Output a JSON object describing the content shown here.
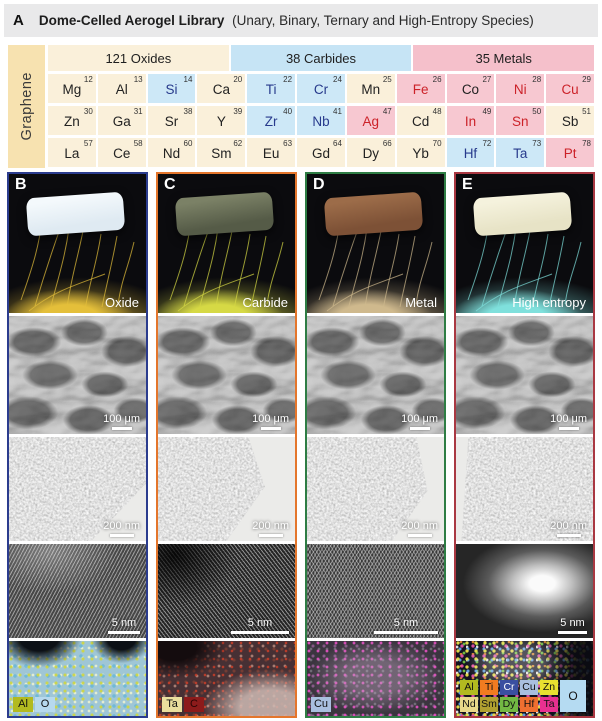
{
  "figure": {
    "panel_label": "A",
    "title": "Dome-Celled Aerogel Library",
    "subtitle": "(Unary, Binary, Ternary and High-Entropy Species)"
  },
  "periodic_table": {
    "side_label": "Graphene",
    "group_headers": [
      "121 Oxides",
      "38 Carbides",
      "35 Metals"
    ],
    "colors": {
      "oxide_bg": "#faf0da",
      "carbide_bg": "#cde8f7",
      "metal_bg": "#f7c8d1",
      "oxide_header_bg": "#faf0da",
      "carbide_header_bg": "#c6e4f5",
      "metal_header_bg": "#f5c0cb",
      "carbide_text": "#273a8c",
      "metal_text": "#cc2229",
      "default_text": "#222222",
      "graphene_bg": "#f7e2b0"
    },
    "rows": [
      [
        {
          "symbol": "Mg",
          "number": "12",
          "type": "oxide"
        },
        {
          "symbol": "Al",
          "number": "13",
          "type": "oxide"
        },
        {
          "symbol": "Si",
          "number": "14",
          "type": "carbide"
        },
        {
          "symbol": "Ca",
          "number": "20",
          "type": "oxide"
        },
        {
          "symbol": "Ti",
          "number": "22",
          "type": "carbide"
        },
        {
          "symbol": "Cr",
          "number": "24",
          "type": "carbide"
        },
        {
          "symbol": "Mn",
          "number": "25",
          "type": "oxide"
        },
        {
          "symbol": "Fe",
          "number": "26",
          "type": "metal"
        },
        {
          "symbol": "Co",
          "number": "27",
          "type": "metal",
          "text": "default"
        },
        {
          "symbol": "Ni",
          "number": "28",
          "type": "metal"
        },
        {
          "symbol": "Cu",
          "number": "29",
          "type": "metal"
        }
      ],
      [
        {
          "symbol": "Zn",
          "number": "30",
          "type": "oxide"
        },
        {
          "symbol": "Ga",
          "number": "31",
          "type": "oxide"
        },
        {
          "symbol": "Sr",
          "number": "38",
          "type": "oxide"
        },
        {
          "symbol": "Y",
          "number": "39",
          "type": "oxide"
        },
        {
          "symbol": "Zr",
          "number": "40",
          "type": "carbide"
        },
        {
          "symbol": "Nb",
          "number": "41",
          "type": "carbide"
        },
        {
          "symbol": "Ag",
          "number": "47",
          "type": "metal"
        },
        {
          "symbol": "Cd",
          "number": "48",
          "type": "oxide"
        },
        {
          "symbol": "In",
          "number": "49",
          "type": "metal"
        },
        {
          "symbol": "Sn",
          "number": "50",
          "type": "metal"
        },
        {
          "symbol": "Sb",
          "number": "51",
          "type": "oxide"
        }
      ],
      [
        {
          "symbol": "La",
          "number": "57",
          "type": "oxide"
        },
        {
          "symbol": "Ce",
          "number": "58",
          "type": "oxide"
        },
        {
          "symbol": "Nd",
          "number": "60",
          "type": "oxide"
        },
        {
          "symbol": "Sm",
          "number": "62",
          "type": "oxide"
        },
        {
          "symbol": "Eu",
          "number": "63",
          "type": "oxide"
        },
        {
          "symbol": "Gd",
          "number": "64",
          "type": "oxide"
        },
        {
          "symbol": "Dy",
          "number": "66",
          "type": "oxide"
        },
        {
          "symbol": "Yb",
          "number": "70",
          "type": "oxide"
        },
        {
          "symbol": "Hf",
          "number": "72",
          "type": "carbide"
        },
        {
          "symbol": "Ta",
          "number": "73",
          "type": "carbide"
        },
        {
          "symbol": "Pt",
          "number": "78",
          "type": "metal"
        }
      ]
    ]
  },
  "panels": [
    {
      "letter": "B",
      "label": "Oxide",
      "accent": "#2b3c8e",
      "photo": {
        "slab_color": "#dfeaf2",
        "slab_highlight": "#f4f9fc",
        "fiber_color": "#e4bf3a"
      },
      "scale_bars": {
        "sem": "100 μm",
        "tem": "200 nm",
        "hrtem": "5 nm"
      },
      "eds_labels": [
        {
          "text": "Al",
          "bg": "#b2ba20",
          "fg": "#111111"
        },
        {
          "text": "O",
          "bg": "#b7d9ee",
          "fg": "#111111"
        }
      ]
    },
    {
      "letter": "C",
      "label": "Carbide",
      "accent": "#e4762c",
      "photo": {
        "slab_color": "#555b47",
        "slab_highlight": "#7b8166",
        "fiber_color": "#d6d945"
      },
      "scale_bars": {
        "sem": "100 μm",
        "tem": "200 nm",
        "hrtem": "5 nm"
      },
      "eds_labels": [
        {
          "text": "Ta",
          "bg": "#eadf9d",
          "fg": "#111111"
        },
        {
          "text": "C",
          "bg": "#8c1b1b",
          "fg": "#2a0505"
        }
      ]
    },
    {
      "letter": "D",
      "label": "Metal",
      "accent": "#2e7d44",
      "photo": {
        "slab_color": "#7d5136",
        "slab_highlight": "#9c6c49",
        "fiber_color": "#cfb98d"
      },
      "scale_bars": {
        "sem": "100 μm",
        "tem": "200 nm",
        "hrtem": "5 nm"
      },
      "eds_labels": [
        {
          "text": "Cu",
          "bg": "#a9bfdf",
          "fg": "#111111"
        }
      ]
    },
    {
      "letter": "E",
      "label": "High entropy",
      "accent": "#a93842",
      "photo": {
        "slab_color": "#e7e3c6",
        "slab_highlight": "#f5f2dd",
        "fiber_color": "#7fe0dc"
      },
      "scale_bars": {
        "sem": "100 μm",
        "tem": "200 nm",
        "hrtem": "5 nm"
      },
      "eds_label_rows": [
        [
          {
            "text": "Al",
            "bg": "#b2ba20",
            "fg": "#111111"
          },
          {
            "text": "Ti",
            "bg": "#f07b20",
            "fg": "#111111"
          },
          {
            "text": "Cr",
            "bg": "#3a4fa0",
            "fg": "#ffffff"
          },
          {
            "text": "Cu",
            "bg": "#a9bfdf",
            "fg": "#111111"
          },
          {
            "text": "Zn",
            "bg": "#e8e030",
            "fg": "#111111"
          }
        ],
        [
          {
            "text": "Nd",
            "bg": "#e8d88a",
            "fg": "#111111"
          },
          {
            "text": "Sm",
            "bg": "#b0a030",
            "fg": "#111111"
          },
          {
            "text": "Dy",
            "bg": "#72b843",
            "fg": "#111111"
          },
          {
            "text": "Hf",
            "bg": "#f06f30",
            "fg": "#111111"
          },
          {
            "text": "Ta",
            "bg": "#e83090",
            "fg": "#111111"
          }
        ]
      ],
      "eds_label_tall": {
        "text": "O",
        "bg": "#b5dbf2",
        "fg": "#111111"
      }
    }
  ]
}
